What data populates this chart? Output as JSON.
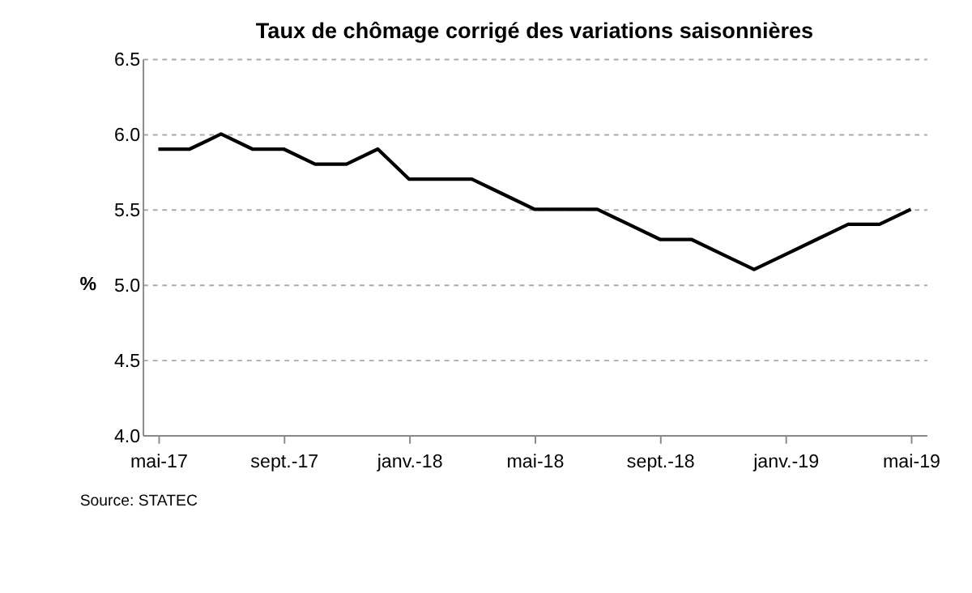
{
  "chart_data": {
    "type": "line",
    "title": "Taux de chômage corrigé des variations  saisonnières",
    "categories": [
      "mai-17",
      null,
      null,
      null,
      "sept.-17",
      null,
      null,
      null,
      "janv.-18",
      null,
      null,
      null,
      "mai-18",
      null,
      null,
      null,
      "sept.-18",
      null,
      null,
      null,
      "janv.-19",
      null,
      null,
      null,
      "mai-19"
    ],
    "series": [
      {
        "color": "#000000",
        "values": [
          5.9,
          5.9,
          6.0,
          5.9,
          5.9,
          5.8,
          5.8,
          5.9,
          5.7,
          5.7,
          5.7,
          5.6,
          5.5,
          5.5,
          5.5,
          5.4,
          5.3,
          5.3,
          5.2,
          5.1,
          5.2,
          5.3,
          5.4,
          5.4,
          5.5
        ]
      }
    ],
    "ylabel": "%",
    "ylim": [
      4.0,
      6.5
    ],
    "yticks": [
      {
        "value": 4.0,
        "label": "4.0"
      },
      {
        "value": 4.5,
        "label": "4.5"
      },
      {
        "value": 5.0,
        "label": "5.0"
      },
      {
        "value": 5.5,
        "label": "5.5"
      },
      {
        "value": 6.0,
        "label": "6.0"
      },
      {
        "value": 6.5,
        "label": "6.5"
      }
    ],
    "grid": "y",
    "legend": false,
    "marker": "none",
    "line_style": "solid",
    "annotations": [
      "Source: STATEC"
    ]
  }
}
